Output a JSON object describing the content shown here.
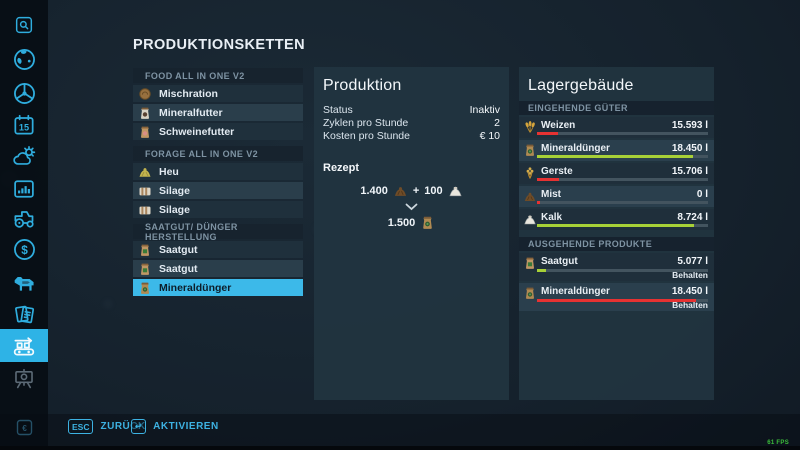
{
  "page_title": "PRODUKTIONSKETTEN",
  "sidebar": {
    "calendar_day": "15",
    "items": [
      {
        "icon": "magnifier-icon"
      },
      {
        "icon": "globe-icon"
      },
      {
        "icon": "steering-wheel-icon"
      },
      {
        "icon": "calendar-icon"
      },
      {
        "icon": "weather-icon"
      },
      {
        "icon": "bar-chart-icon"
      },
      {
        "icon": "tractor-icon"
      },
      {
        "icon": "dollar-icon"
      },
      {
        "icon": "cow-icon"
      },
      {
        "icon": "documents-icon"
      },
      {
        "icon": "conveyor-icon",
        "selected": true
      },
      {
        "icon": "presentation-board-icon",
        "disabled": true
      },
      {
        "icon": "euro-icon"
      }
    ]
  },
  "production_list": {
    "groups": [
      {
        "header": "FOOD ALL IN ONE V2",
        "items": [
          {
            "label": "Mischration",
            "icon": "mixed-ration-icon"
          },
          {
            "label": "Mineralfutter",
            "icon": "mineral-feed-bag-icon"
          },
          {
            "label": "Schweinefutter",
            "icon": "pig-feed-bag-icon"
          }
        ]
      },
      {
        "header": "FORAGE ALL IN ONE V2",
        "items": [
          {
            "label": "Heu",
            "icon": "hay-icon"
          },
          {
            "label": "Silage",
            "icon": "silage-bale-icon"
          },
          {
            "label": "Silage",
            "icon": "silage-bale-icon"
          }
        ]
      },
      {
        "header": "SAATGUT/ DÜNGER HERSTELLUNG",
        "items": [
          {
            "label": "Saatgut",
            "icon": "seed-bag-icon"
          },
          {
            "label": "Saatgut",
            "icon": "seed-bag-icon"
          },
          {
            "label": "Mineraldünger",
            "icon": "fertilizer-bag-icon",
            "selected": true
          }
        ]
      }
    ]
  },
  "production_panel": {
    "title": "Produktion",
    "rows": [
      {
        "label": "Status",
        "value": "Inaktiv"
      },
      {
        "label": "Zyklen pro Stunde",
        "value": "2"
      },
      {
        "label": "Kosten pro Stunde",
        "value": "€ 10"
      }
    ],
    "recipe": {
      "heading": "Rezept",
      "plus": "+",
      "inputs": [
        {
          "amount": "1.400",
          "icon": "manure-icon"
        },
        {
          "amount": "100",
          "icon": "lime-icon"
        }
      ],
      "output": {
        "amount": "1.500",
        "icon": "fertilizer-bag-icon"
      }
    }
  },
  "storage_panel": {
    "title": "Lagergebäude",
    "incoming": {
      "header": "EINGEHENDE GÜTER",
      "rows": [
        {
          "name": "Weizen",
          "value": "15.593 l",
          "icon": "wheat-icon",
          "fill_pct": 12,
          "bar_color": "#e63232"
        },
        {
          "name": "Mineraldünger",
          "value": "18.450 l",
          "icon": "fertilizer-bag-icon",
          "fill_pct": 91,
          "bar_color": "#a7d037"
        },
        {
          "name": "Gerste",
          "value": "15.706 l",
          "icon": "barley-icon",
          "fill_pct": 13,
          "bar_color": "#e63232"
        },
        {
          "name": "Mist",
          "value": "0 l",
          "icon": "manure-icon",
          "fill_pct": 2,
          "bar_color": "#e63232"
        },
        {
          "name": "Kalk",
          "value": "8.724 l",
          "icon": "lime-icon",
          "fill_pct": 92,
          "bar_color": "#a7d037"
        }
      ]
    },
    "outgoing": {
      "header": "AUSGEHENDE PRODUKTE",
      "rows": [
        {
          "name": "Saatgut",
          "value": "5.077 l",
          "icon": "seed-bag-icon",
          "fill_pct": 5,
          "bar_color": "#a7d037",
          "mode": "Behalten"
        },
        {
          "name": "Mineraldünger",
          "value": "18.450 l",
          "icon": "fertilizer-bag-icon",
          "fill_pct": 93,
          "bar_color": "#e63232",
          "mode": "Behalten"
        }
      ]
    }
  },
  "footer": {
    "back": {
      "key": "ESC",
      "label": "ZURÜCK"
    },
    "activate": {
      "key": "↵",
      "label": "AKTIVIEREN"
    },
    "fps": "61 FPS"
  },
  "colors": {
    "accent_cyan": "#3cb9e9",
    "bar_red": "#e63232",
    "bar_green": "#a7d037",
    "panel_bg": "#213440"
  }
}
